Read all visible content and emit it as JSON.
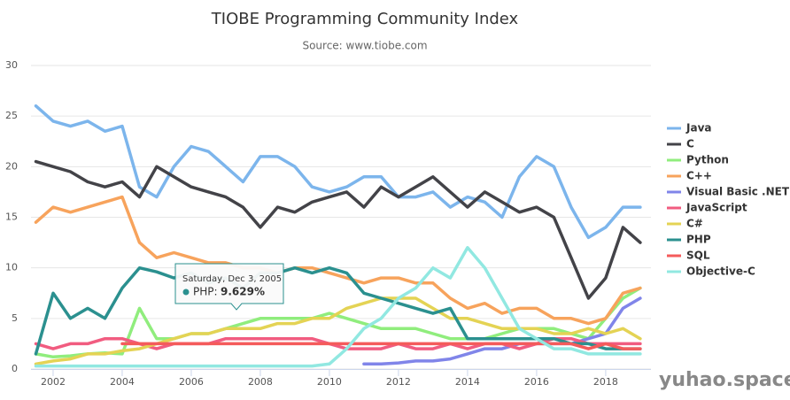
{
  "chart_data": {
    "type": "line",
    "title": "TIOBE Programming Community Index",
    "subtitle": "Source: www.tiobe.com",
    "x": [
      2001.5,
      2002,
      2002.5,
      2003,
      2003.5,
      2004,
      2004.5,
      2005,
      2005.5,
      2006,
      2006.5,
      2007,
      2007.5,
      2008,
      2008.5,
      2009,
      2009.5,
      2010,
      2010.5,
      2011,
      2011.5,
      2012,
      2012.5,
      2013,
      2013.5,
      2014,
      2014.5,
      2015,
      2015.5,
      2016,
      2016.5,
      2017,
      2017.5,
      2018,
      2018.5,
      2019
    ],
    "xlim": [
      2001.36,
      2019.31
    ],
    "xticks": [
      2002,
      2004,
      2006,
      2008,
      2010,
      2012,
      2014,
      2016,
      2018
    ],
    "ylim": [
      0,
      30
    ],
    "yticks": [
      0,
      5,
      10,
      15,
      20,
      25,
      30
    ],
    "grid": true,
    "legend": "right",
    "series": [
      {
        "name": "Java",
        "color": "#7cb5ec",
        "values": [
          26,
          24.5,
          24,
          24.5,
          23.5,
          24,
          18,
          17,
          20,
          22,
          21.5,
          20,
          18.5,
          21,
          21,
          20,
          18,
          17.5,
          18,
          19,
          19,
          17,
          17,
          17.5,
          16,
          17,
          16.5,
          15,
          19,
          21,
          20,
          16,
          13,
          14,
          16,
          16
        ]
      },
      {
        "name": "C",
        "color": "#434348",
        "values": [
          20.5,
          20,
          19.5,
          18.5,
          18,
          18.5,
          17,
          20,
          19,
          18,
          17.5,
          17,
          16,
          14,
          16,
          15.5,
          16.5,
          17,
          17.5,
          16,
          18,
          17,
          18,
          19,
          17.5,
          16,
          17.5,
          16.5,
          15.5,
          16,
          15,
          11,
          7,
          9,
          14,
          12.5
        ]
      },
      {
        "name": "Python",
        "color": "#90ed7d",
        "values": [
          1.5,
          1.2,
          1.3,
          1.5,
          1.6,
          1.5,
          6,
          3,
          3,
          3.5,
          3.5,
          4,
          4.5,
          5,
          5,
          5,
          5,
          5.5,
          5,
          4.5,
          4,
          4,
          4,
          3.5,
          3,
          3,
          3,
          3.5,
          4,
          4,
          4,
          3.5,
          3,
          5,
          7,
          8
        ]
      },
      {
        "name": "C++",
        "color": "#f7a35c",
        "values": [
          14.5,
          16,
          15.5,
          16,
          16.5,
          17,
          12.5,
          11,
          11.5,
          11,
          10.5,
          10.5,
          10,
          10,
          9.5,
          10,
          10,
          9.5,
          9,
          8.5,
          9,
          9,
          8.5,
          8.5,
          7,
          6,
          6.5,
          5.5,
          6,
          6,
          5,
          5,
          4.5,
          5,
          7.5,
          8
        ]
      },
      {
        "name": "Visual Basic .NET",
        "color": "#8085e9",
        "values": [
          null,
          null,
          null,
          null,
          null,
          null,
          null,
          null,
          null,
          null,
          null,
          null,
          null,
          null,
          null,
          null,
          null,
          null,
          null,
          0.5,
          0.5,
          0.6,
          0.8,
          0.8,
          1,
          1.5,
          2,
          2,
          2.5,
          2.5,
          2.5,
          2.5,
          3,
          3.5,
          6,
          7
        ]
      },
      {
        "name": "JavaScript",
        "color": "#f15c80",
        "values": [
          2.5,
          2,
          2.5,
          2.5,
          3,
          3,
          2.5,
          2,
          2.5,
          2.5,
          2.5,
          3,
          3,
          3,
          3,
          3,
          3,
          2.5,
          2,
          2,
          2,
          2.5,
          2,
          2,
          2.5,
          2,
          2.5,
          2.5,
          2,
          2.5,
          3,
          3,
          2.5,
          2.5,
          2.5,
          2.5
        ]
      },
      {
        "name": "C#",
        "color": "#e4d354",
        "values": [
          0.5,
          0.8,
          1,
          1.5,
          1.5,
          1.8,
          2,
          2.5,
          3,
          3.5,
          3.5,
          4,
          4,
          4,
          4.5,
          4.5,
          5,
          5,
          6,
          6.5,
          7,
          7,
          7,
          6,
          5,
          5,
          4.5,
          4,
          4,
          4,
          3.5,
          3.5,
          4,
          3.5,
          4,
          3
        ]
      },
      {
        "name": "PHP",
        "color": "#2b908f",
        "values": [
          1.5,
          7.5,
          5,
          6,
          5,
          8,
          10,
          9.6,
          9,
          9.5,
          8.5,
          9,
          8,
          9.5,
          9.5,
          10,
          9.5,
          10,
          9.5,
          7.5,
          7,
          6.5,
          6,
          5.5,
          6,
          3,
          3,
          3,
          3,
          3,
          3,
          2.5,
          2.5,
          2,
          2,
          2
        ]
      },
      {
        "name": "SQL",
        "color": "#f45b5b",
        "values": [
          null,
          null,
          null,
          null,
          null,
          2.5,
          2.5,
          2.5,
          2.5,
          2.5,
          2.5,
          2.5,
          2.5,
          2.5,
          2.5,
          2.5,
          2.5,
          2.5,
          2.5,
          2.5,
          2.5,
          2.5,
          2.5,
          2.5,
          2.5,
          2.5,
          2.5,
          2.5,
          2.5,
          2.5,
          2.5,
          2.5,
          2,
          2.5,
          2,
          2
        ]
      },
      {
        "name": "Objective-C",
        "color": "#91e8e1",
        "values": [
          0.3,
          0.3,
          0.3,
          0.3,
          0.3,
          0.3,
          0.3,
          0.3,
          0.3,
          0.3,
          0.3,
          0.3,
          0.3,
          0.3,
          0.3,
          0.3,
          0.3,
          0.5,
          2,
          4,
          5,
          7,
          8,
          10,
          9,
          12,
          10,
          7,
          4,
          3,
          2,
          2,
          1.5,
          1.5,
          1.5,
          1.5
        ]
      }
    ],
    "tooltip": {
      "date": "Saturday, Dec 3, 2005",
      "label": "PHP:",
      "value_text": "9.629%"
    }
  },
  "watermark": "yuhao.space"
}
